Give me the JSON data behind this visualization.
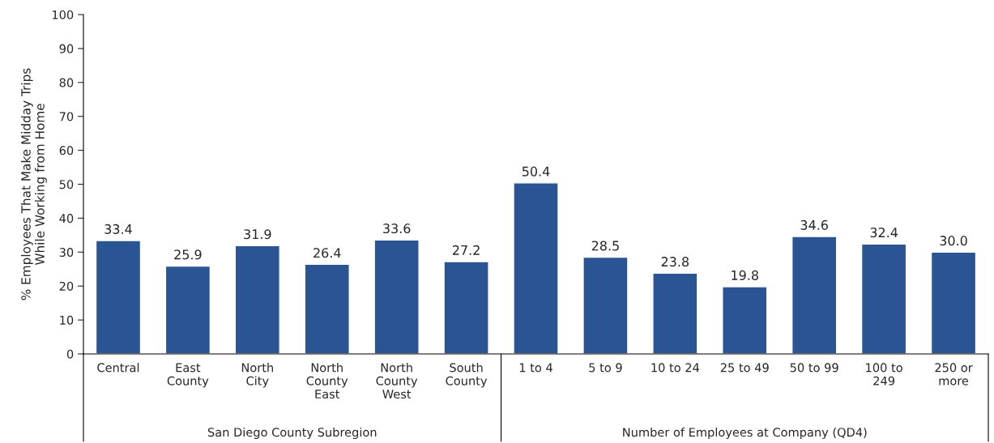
{
  "chart_data": {
    "type": "bar",
    "ylabel": "% Employees That Make Midday Trips\nWhile Working from Home",
    "categories": [
      "Central",
      "East\nCounty",
      "North\nCity",
      "North\nCounty\nEast",
      "North\nCounty\nWest",
      "South\nCounty",
      "1 to 4",
      "5 to 9",
      "10 to 24",
      "25 to 49",
      "50 to 99",
      "100 to\n249",
      "250 or\nmore"
    ],
    "values": [
      33.4,
      25.9,
      31.9,
      26.4,
      33.6,
      27.2,
      50.4,
      28.5,
      23.8,
      19.8,
      34.6,
      32.4,
      30.0
    ],
    "value_labels": [
      "33.4",
      "25.9",
      "31.9",
      "26.4",
      "33.6",
      "27.2",
      "50.4",
      "28.5",
      "23.8",
      "19.8",
      "34.6",
      "32.4",
      "30.0"
    ],
    "color": "#2a5592",
    "ylim": [
      0,
      100
    ],
    "yticks": [
      0,
      10,
      20,
      30,
      40,
      50,
      60,
      70,
      80,
      90,
      100
    ],
    "annotations": [
      "San Diego County Subregion",
      "Number of Employees at Company (QD4)"
    ],
    "grid": false,
    "legend": false
  }
}
